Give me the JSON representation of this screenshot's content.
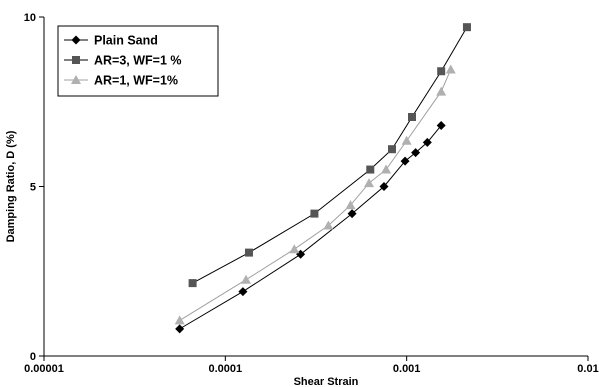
{
  "chart_data": {
    "type": "line",
    "xlabel": "Shear Strain",
    "ylabel": "Damping Ratio, D (%)",
    "xscale": "log",
    "xlim": [
      1e-05,
      0.01
    ],
    "ylim": [
      0,
      10
    ],
    "x_tick_labels": [
      "0.00001",
      "0.0001",
      "0.001",
      "0.01"
    ],
    "y_tick_labels": [
      "0",
      "5",
      "10"
    ],
    "y_ticks": [
      0,
      5,
      10
    ],
    "grid": false,
    "legend_position": "top-left",
    "series": [
      {
        "name": "Plain Sand",
        "marker": "diamond",
        "color": "#000000",
        "x": [
          5.6e-05,
          0.000125,
          0.00026,
          0.0005,
          0.00075,
          0.00098,
          0.00112,
          0.0013,
          0.00155
        ],
        "y": [
          0.8,
          1.9,
          3.0,
          4.2,
          5.0,
          5.75,
          6.0,
          6.3,
          6.8
        ]
      },
      {
        "name": "AR=3, WF=1 %",
        "marker": "square",
        "color": "#555555",
        "x": [
          6.6e-05,
          0.000135,
          0.00031,
          0.00063,
          0.00083,
          0.00107,
          0.00155,
          0.00215
        ],
        "y": [
          2.15,
          3.05,
          4.2,
          5.5,
          6.1,
          7.05,
          8.4,
          9.7
        ]
      },
      {
        "name": "AR=1, WF=1%",
        "marker": "triangle",
        "color": "#b0b0b0",
        "x": [
          5.6e-05,
          0.00013,
          0.00024,
          0.00037,
          0.00049,
          0.00062,
          0.00077,
          0.001,
          0.00155,
          0.00175
        ],
        "y": [
          1.05,
          2.25,
          3.15,
          3.85,
          4.45,
          5.1,
          5.5,
          6.35,
          7.8,
          8.45
        ]
      }
    ]
  }
}
